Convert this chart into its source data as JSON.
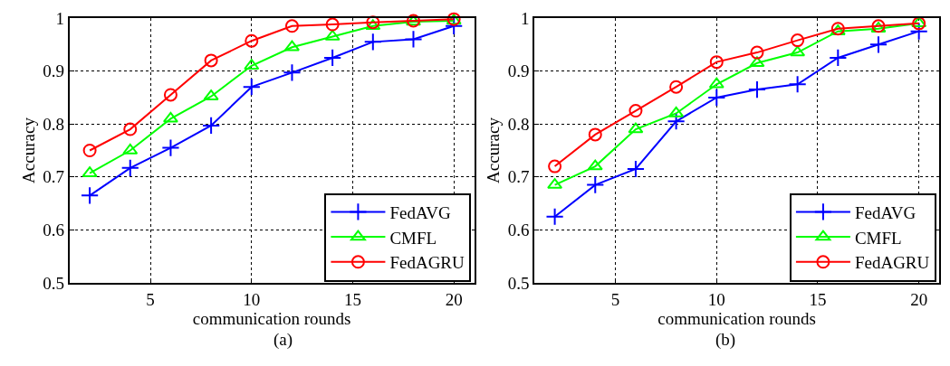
{
  "chart_data": [
    {
      "type": "line",
      "xlabel": "communication rounds",
      "ylabel": "Accuracy",
      "x": [
        2,
        4,
        6,
        8,
        10,
        12,
        14,
        16,
        18,
        20
      ],
      "xlim": [
        1,
        21
      ],
      "xticks": [
        5,
        10,
        15,
        20
      ],
      "ylim": [
        0.5,
        1
      ],
      "yticks": [
        0.5,
        0.6,
        0.7,
        0.8,
        0.9,
        1
      ],
      "grid": true,
      "legend": "bottom right",
      "annotations": [
        "(a)"
      ],
      "series": [
        {
          "name": "FedAVG",
          "color": "#0000ff",
          "marker": "cross",
          "values": [
            0.665,
            0.717,
            0.755,
            0.797,
            0.87,
            0.897,
            0.925,
            0.955,
            0.96,
            0.985
          ]
        },
        {
          "name": "CMFL",
          "color": "#00ff00",
          "marker": "triangle",
          "values": [
            0.707,
            0.75,
            0.81,
            0.852,
            0.91,
            0.945,
            0.965,
            0.985,
            0.993,
            0.995
          ]
        },
        {
          "name": "FedAGRU",
          "color": "#ff0000",
          "marker": "circle",
          "values": [
            0.75,
            0.79,
            0.855,
            0.92,
            0.957,
            0.985,
            0.988,
            0.992,
            0.995,
            0.998
          ]
        }
      ]
    },
    {
      "type": "line",
      "xlabel": "communication rounds",
      "ylabel": "Accuracy",
      "x": [
        2,
        4,
        6,
        8,
        10,
        12,
        14,
        16,
        18,
        20
      ],
      "xlim": [
        1,
        21
      ],
      "xticks": [
        5,
        10,
        15,
        20
      ],
      "ylim": [
        0.5,
        1
      ],
      "yticks": [
        0.5,
        0.6,
        0.7,
        0.8,
        0.9,
        1
      ],
      "grid": true,
      "legend": "bottom right",
      "annotations": [
        "(b)"
      ],
      "series": [
        {
          "name": "FedAVG",
          "color": "#0000ff",
          "marker": "cross",
          "values": [
            0.625,
            0.685,
            0.715,
            0.805,
            0.85,
            0.865,
            0.875,
            0.925,
            0.95,
            0.975
          ]
        },
        {
          "name": "CMFL",
          "color": "#00ff00",
          "marker": "triangle",
          "values": [
            0.685,
            0.72,
            0.79,
            0.82,
            0.875,
            0.915,
            0.935,
            0.975,
            0.98,
            0.99
          ]
        },
        {
          "name": "FedAGRU",
          "color": "#ff0000",
          "marker": "circle",
          "values": [
            0.72,
            0.78,
            0.825,
            0.87,
            0.917,
            0.935,
            0.958,
            0.98,
            0.985,
            0.99
          ]
        }
      ]
    }
  ]
}
